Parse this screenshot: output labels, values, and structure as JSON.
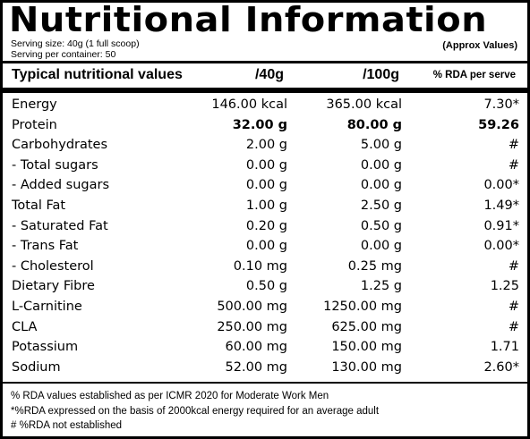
{
  "title": "Nutritional Information",
  "serving_size": "Serving size: 40g (1 full scoop)",
  "servings_per_container": "Serving per container: 50",
  "approx_note": "(Approx Values)",
  "header": {
    "name": "Typical nutritional values",
    "per40": "/40g",
    "per100": "/100g",
    "rda": "% RDA per serve"
  },
  "rows": [
    {
      "name": "Energy",
      "per40": "146.00 kcal",
      "per100": "365.00 kcal",
      "rda": "7.30*"
    },
    {
      "name": "Protein",
      "per40": "32.00 g",
      "per100": "80.00 g",
      "rda": "59.26"
    },
    {
      "name": "Carbohydrates",
      "per40": "2.00 g",
      "per100": "5.00 g",
      "rda": "#"
    },
    {
      "name": " - Total sugars",
      "per40": "0.00 g",
      "per100": "0.00  g",
      "rda": "#"
    },
    {
      "name": " - Added sugars",
      "per40": "0.00 g",
      "per100": "0.00 g",
      "rda": "0.00*"
    },
    {
      "name": "Total Fat",
      "per40": "1.00 g",
      "per100": "2.50 g",
      "rda": "1.49*"
    },
    {
      "name": " - Saturated Fat",
      "per40": "0.20 g",
      "per100": "0.50 g",
      "rda": "0.91*"
    },
    {
      "name": " - Trans Fat",
      "per40": "0.00 g",
      "per100": "0.00 g",
      "rda": "0.00*"
    },
    {
      "name": " - Cholesterol",
      "per40": "0.10 mg",
      "per100": "0.25 mg",
      "rda": "#"
    },
    {
      "name": "Dietary Fibre",
      "per40": "0.50 g",
      "per100": "1.25 g",
      "rda": "1.25"
    },
    {
      "name": "L-Carnitine",
      "per40": "500.00 mg",
      "per100": "1250.00 mg",
      "rda": "#"
    },
    {
      "name": "CLA",
      "per40": "250.00 mg",
      "per100": "625.00 mg",
      "rda": "#"
    },
    {
      "name": "Potassium",
      "per40": "60.00 mg",
      "per100": "150.00 mg",
      "rda": "1.71"
    },
    {
      "name": "Sodium",
      "per40": "52.00 mg",
      "per100": "130.00 mg",
      "rda": "2.60*"
    }
  ],
  "footnotes": [
    "% RDA values established as per ICMR 2020 for Moderate Work Men",
    "*%RDA expressed on the basis of 2000kcal energy required for an average adult",
    "# %RDA not established"
  ]
}
